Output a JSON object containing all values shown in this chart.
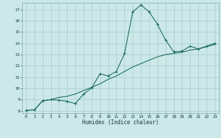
{
  "xlabel": "Humidex (Indice chaleur)",
  "background_color": "#cce8e8",
  "grid_color": "#aacfcf",
  "line_color": "#1a6b5a",
  "xlim": [
    -0.5,
    23.5
  ],
  "ylim": [
    7.8,
    17.6
  ],
  "xticks": [
    0,
    1,
    2,
    3,
    4,
    5,
    6,
    7,
    8,
    9,
    10,
    11,
    12,
    13,
    14,
    15,
    16,
    17,
    18,
    19,
    20,
    21,
    22,
    23
  ],
  "yticks": [
    8,
    9,
    10,
    11,
    12,
    13,
    14,
    15,
    16,
    17
  ],
  "line1_x": [
    0,
    1,
    2,
    3,
    4,
    5,
    6,
    7,
    8,
    9,
    10,
    11,
    12,
    13,
    14,
    15,
    16,
    17,
    18,
    19,
    20,
    21,
    22,
    23
  ],
  "line1_y": [
    8.05,
    8.1,
    8.9,
    9.0,
    8.95,
    8.85,
    8.65,
    9.5,
    10.05,
    11.3,
    11.1,
    11.5,
    13.1,
    16.8,
    17.4,
    16.8,
    15.7,
    14.3,
    13.25,
    13.3,
    13.75,
    13.5,
    13.75,
    14.0
  ],
  "line2_x": [
    0,
    1,
    2,
    3,
    4,
    5,
    6,
    7,
    8,
    9,
    10,
    11,
    12,
    13,
    14,
    15,
    16,
    17,
    18,
    19,
    20,
    21,
    22,
    23
  ],
  "line2_y": [
    8.05,
    8.1,
    8.9,
    9.0,
    9.2,
    9.3,
    9.5,
    9.8,
    10.1,
    10.4,
    10.8,
    11.1,
    11.5,
    11.9,
    12.2,
    12.5,
    12.8,
    13.0,
    13.1,
    13.2,
    13.4,
    13.5,
    13.7,
    13.9
  ]
}
